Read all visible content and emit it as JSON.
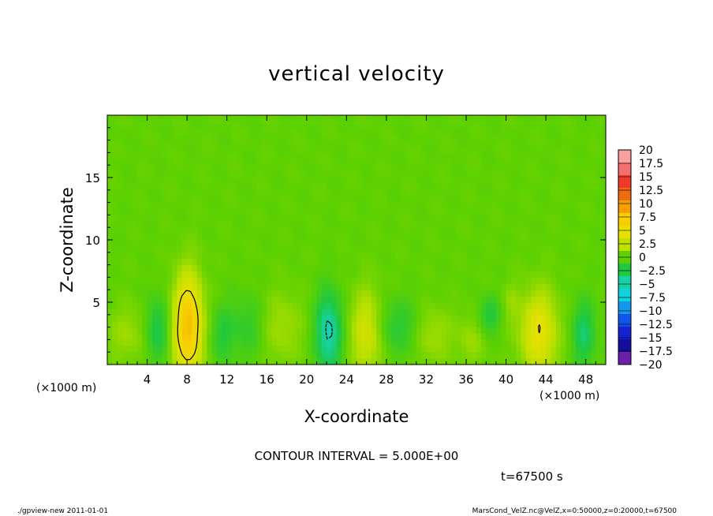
{
  "chart_data": {
    "type": "heatmap",
    "title": "vertical velocity",
    "xlabel": "X-coordinate",
    "ylabel": "Z-coordinate",
    "x_unit_left": "(×1000 m)",
    "x_unit_right": "(×1000 m)",
    "xlim": [
      0,
      50
    ],
    "ylim": [
      0,
      20
    ],
    "x_ticks": [
      {
        "value": 4,
        "label": "4"
      },
      {
        "value": 8,
        "label": "8"
      },
      {
        "value": 12,
        "label": "12"
      },
      {
        "value": 16,
        "label": "16"
      },
      {
        "value": 20,
        "label": "20"
      },
      {
        "value": 24,
        "label": "24"
      },
      {
        "value": 28,
        "label": "28"
      },
      {
        "value": 32,
        "label": "32"
      },
      {
        "value": 36,
        "label": "36"
      },
      {
        "value": 40,
        "label": "40"
      },
      {
        "value": 44,
        "label": "44"
      },
      {
        "value": 48,
        "label": "48"
      }
    ],
    "y_ticks": [
      {
        "value": 5,
        "label": "5"
      },
      {
        "value": 10,
        "label": "10"
      },
      {
        "value": 15,
        "label": "15"
      }
    ],
    "colorbar": {
      "levels": [
        "20",
        "17.5",
        "15",
        "12.5",
        "10",
        "7.5",
        "5",
        "2.5",
        "0",
        "−2.5",
        "−5",
        "−7.5",
        "−10",
        "−12.5",
        "−15",
        "−17.5",
        "−20"
      ],
      "colors": [
        "#f7a0a0",
        "#f47070",
        "#ef3a2a",
        "#f06a12",
        "#f5a000",
        "#f7cf00",
        "#e8e000",
        "#bde000",
        "#5ed100",
        "#1ec83f",
        "#15d2a8",
        "#12d2e0",
        "#1199ee",
        "#1155ee",
        "#1522d2",
        "#150e9c",
        "#6a20a8"
      ]
    },
    "features": [
      {
        "x": 8.1,
        "z": 3.1,
        "sx": 1.0,
        "sz": 2.8,
        "w": 8.5
      },
      {
        "x": 26.1,
        "z": 2.7,
        "sx": 1.2,
        "sz": 2.2,
        "w": 4.5
      },
      {
        "x": 43.3,
        "z": 2.6,
        "sx": 1.3,
        "sz": 2.3,
        "w": 5.0
      },
      {
        "x": 22.2,
        "z": 2.6,
        "sx": 0.9,
        "sz": 2.2,
        "w": -5.5
      },
      {
        "x": 5.0,
        "z": 2.8,
        "sx": 0.8,
        "sz": 1.8,
        "w": -3.0
      },
      {
        "x": 47.8,
        "z": 2.5,
        "sx": 0.8,
        "sz": 1.8,
        "w": -3.5
      },
      {
        "x": 38.3,
        "z": 4.0,
        "sx": 0.8,
        "sz": 1.0,
        "w": -2.6
      },
      {
        "x": 28.8,
        "z": 3.0,
        "sx": 2.2,
        "sz": 1.6,
        "w": -2.3
      },
      {
        "x": 14.0,
        "z": 3.0,
        "sx": 1.3,
        "sz": 1.8,
        "w": -1.8
      },
      {
        "x": 11.5,
        "z": 2.4,
        "sx": 0.8,
        "sz": 1.6,
        "w": -2.0
      },
      {
        "x": 32.5,
        "z": 2.5,
        "sx": 1.4,
        "sz": 1.6,
        "w": 2.2
      },
      {
        "x": 17.5,
        "z": 3.0,
        "sx": 1.5,
        "sz": 2.0,
        "w": 1.8
      },
      {
        "x": 2.0,
        "z": 2.5,
        "sx": 1.4,
        "sz": 1.6,
        "w": 1.6
      },
      {
        "x": 36.5,
        "z": 2.0,
        "sx": 1.0,
        "sz": 1.5,
        "w": 1.5
      },
      {
        "x": 40.5,
        "z": 5.0,
        "sx": 0.6,
        "sz": 1.2,
        "w": 1.2
      }
    ],
    "contour_interval_text": "CONTOUR INTERVAL = 5.000E+00",
    "time_text": "t=67500 s"
  },
  "footer": {
    "left": "./gpview-new   2011-01-01",
    "right": "MarsCond_VelZ.nc@VelZ,x=0:50000,z=0:20000,t=67500"
  }
}
